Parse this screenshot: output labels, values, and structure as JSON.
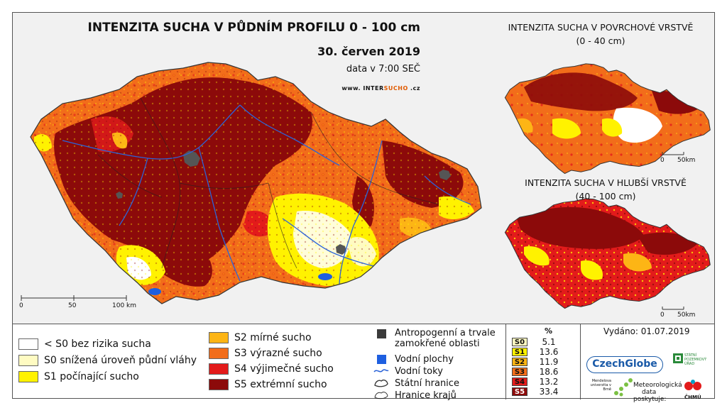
{
  "main_map": {
    "title": "INTENZITA SUCHA V PŮDNÍM PROFILU 0 - 100 cm",
    "date": "30. červen 2019",
    "time": "data v 7:00 SEČ",
    "website_prefix": "www. INTER",
    "website_highlight": "SUCHO",
    "website_suffix": " .cz",
    "scale_labels": [
      "0",
      "50",
      "100 km"
    ]
  },
  "inset_top": {
    "title_line1": "INTENZITA SUCHA V POVRCHOVÉ VRSTVĚ",
    "title_line2": "(0 - 40 cm)",
    "scale_labels": [
      "0",
      "50km"
    ]
  },
  "inset_bottom": {
    "title_line1": "INTENZITA SUCHA V HLUBŠÍ VRSTVĚ",
    "title_line2": "(40 - 100 cm)",
    "scale_labels": [
      "0",
      "50km"
    ]
  },
  "legend": {
    "classes": [
      {
        "label": "< S0 bez rizika sucha",
        "color": "#ffffff"
      },
      {
        "label": "S0 snížená úroveň půdní vláhy",
        "color": "#fffbc2"
      },
      {
        "label": "S1 počínající sucho",
        "color": "#fff200"
      },
      {
        "label": "S2 mírné sucho",
        "color": "#fdb515"
      },
      {
        "label": "S3 výrazné sucho",
        "color": "#f26d1a"
      },
      {
        "label": "S4 výjimečné sucho",
        "color": "#e31b1b"
      },
      {
        "label": "S5 extrémní sucho",
        "color": "#8c0a0a"
      }
    ],
    "symbols": [
      {
        "label_line1": "Antropogenní a trvale",
        "label_line2": "zamokřené oblasti",
        "icon": "dark-square-icon"
      },
      {
        "label": "Vodní plochy",
        "icon": "blue-square-icon"
      },
      {
        "label": "Vodní toky",
        "icon": "river-line-icon"
      },
      {
        "label": "Státní hranice",
        "icon": "state-border-icon"
      },
      {
        "label": "Hranice krajů",
        "icon": "region-border-icon"
      }
    ]
  },
  "stats": {
    "header": "%",
    "rows": [
      {
        "code": "S0",
        "value": "5.1",
        "color": "#fffbc2"
      },
      {
        "code": "S1",
        "value": "13.6",
        "color": "#fff200"
      },
      {
        "code": "S2",
        "value": "11.9",
        "color": "#fdb515"
      },
      {
        "code": "S3",
        "value": "18.6",
        "color": "#f26d1a"
      },
      {
        "code": "S4",
        "value": "13.2",
        "color": "#e31b1b"
      },
      {
        "code": "S5",
        "value": "33.4",
        "color": "#8c0a0a"
      }
    ]
  },
  "footer": {
    "issued": "Vydáno: 01.07.2019",
    "logo_czechglobe": "CzechGlobe",
    "logo_spu": "STÁTNÍ POZEMKOVÝ ÚŘAD",
    "logo_mendel": "Mendelova univerzita v Brně",
    "provider_line1": "Meteorologická",
    "provider_line2": "data",
    "provider_line3": "poskytuje:",
    "logo_chmu": "ČHMÚ"
  }
}
